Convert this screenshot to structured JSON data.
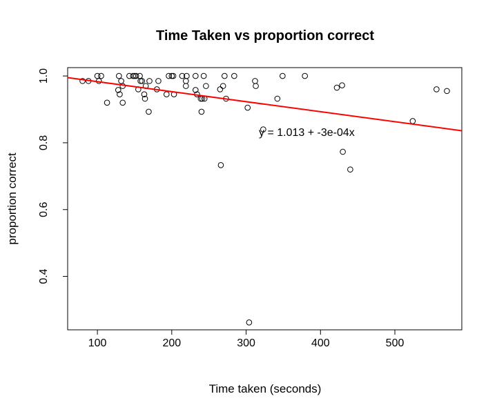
{
  "chart_data": {
    "type": "scatter",
    "title": "Time Taken vs proportion correct",
    "xlabel": "Time taken (seconds)",
    "ylabel": "proportion correct",
    "xlim": [
      60,
      590
    ],
    "ylim": [
      0.24,
      1.025
    ],
    "xticks": [
      100,
      200,
      300,
      400,
      500
    ],
    "yticks": [
      0.4,
      0.6,
      0.8,
      1.0
    ],
    "ytick_labels": [
      "0.4",
      "0.6",
      "0.8",
      "1.0"
    ],
    "fit_line": {
      "intercept": 1.013,
      "slope": -0.0003,
      "color": "#ff0000"
    },
    "annotation": {
      "text": "y = 1.013 + -3e-04x",
      "x": 320,
      "y": 0.835
    },
    "points": [
      [
        80,
        0.985
      ],
      [
        88,
        0.985
      ],
      [
        100,
        1.0
      ],
      [
        102,
        0.985
      ],
      [
        105,
        1.0
      ],
      [
        113,
        0.92
      ],
      [
        128,
        0.958
      ],
      [
        129,
        1.0
      ],
      [
        130,
        0.945
      ],
      [
        132,
        0.985
      ],
      [
        134,
        0.97
      ],
      [
        134,
        0.92
      ],
      [
        143,
        1.0
      ],
      [
        148,
        1.0
      ],
      [
        150,
        1.0
      ],
      [
        152,
        1.0
      ],
      [
        155,
        0.96
      ],
      [
        157,
        1.0
      ],
      [
        158,
        0.985
      ],
      [
        160,
        0.985
      ],
      [
        163,
        0.945
      ],
      [
        164,
        0.932
      ],
      [
        165,
        0.97
      ],
      [
        169,
        0.893
      ],
      [
        170,
        0.985
      ],
      [
        180,
        0.96
      ],
      [
        182,
        0.985
      ],
      [
        193,
        0.945
      ],
      [
        196,
        1.0
      ],
      [
        200,
        1.0
      ],
      [
        202,
        1.0
      ],
      [
        203,
        0.945
      ],
      [
        214,
        1.0
      ],
      [
        219,
        0.985
      ],
      [
        219,
        0.97
      ],
      [
        220,
        1.0
      ],
      [
        232,
        0.958
      ],
      [
        232,
        1.0
      ],
      [
        234,
        0.945
      ],
      [
        239,
        0.932
      ],
      [
        240,
        0.893
      ],
      [
        241,
        0.932
      ],
      [
        243,
        1.0
      ],
      [
        244,
        0.932
      ],
      [
        246,
        0.97
      ],
      [
        265,
        0.96
      ],
      [
        266,
        0.733
      ],
      [
        269,
        0.97
      ],
      [
        271,
        1.0
      ],
      [
        273,
        0.932
      ],
      [
        284,
        1.0
      ],
      [
        302,
        0.905
      ],
      [
        304,
        0.262
      ],
      [
        312,
        0.985
      ],
      [
        313,
        0.97
      ],
      [
        323,
        0.84
      ],
      [
        342,
        0.932
      ],
      [
        349,
        1.0
      ],
      [
        379,
        1.0
      ],
      [
        422,
        0.965
      ],
      [
        429,
        0.972
      ],
      [
        430,
        0.773
      ],
      [
        440,
        0.72
      ],
      [
        524,
        0.865
      ],
      [
        556,
        0.96
      ],
      [
        570,
        0.955
      ]
    ]
  }
}
